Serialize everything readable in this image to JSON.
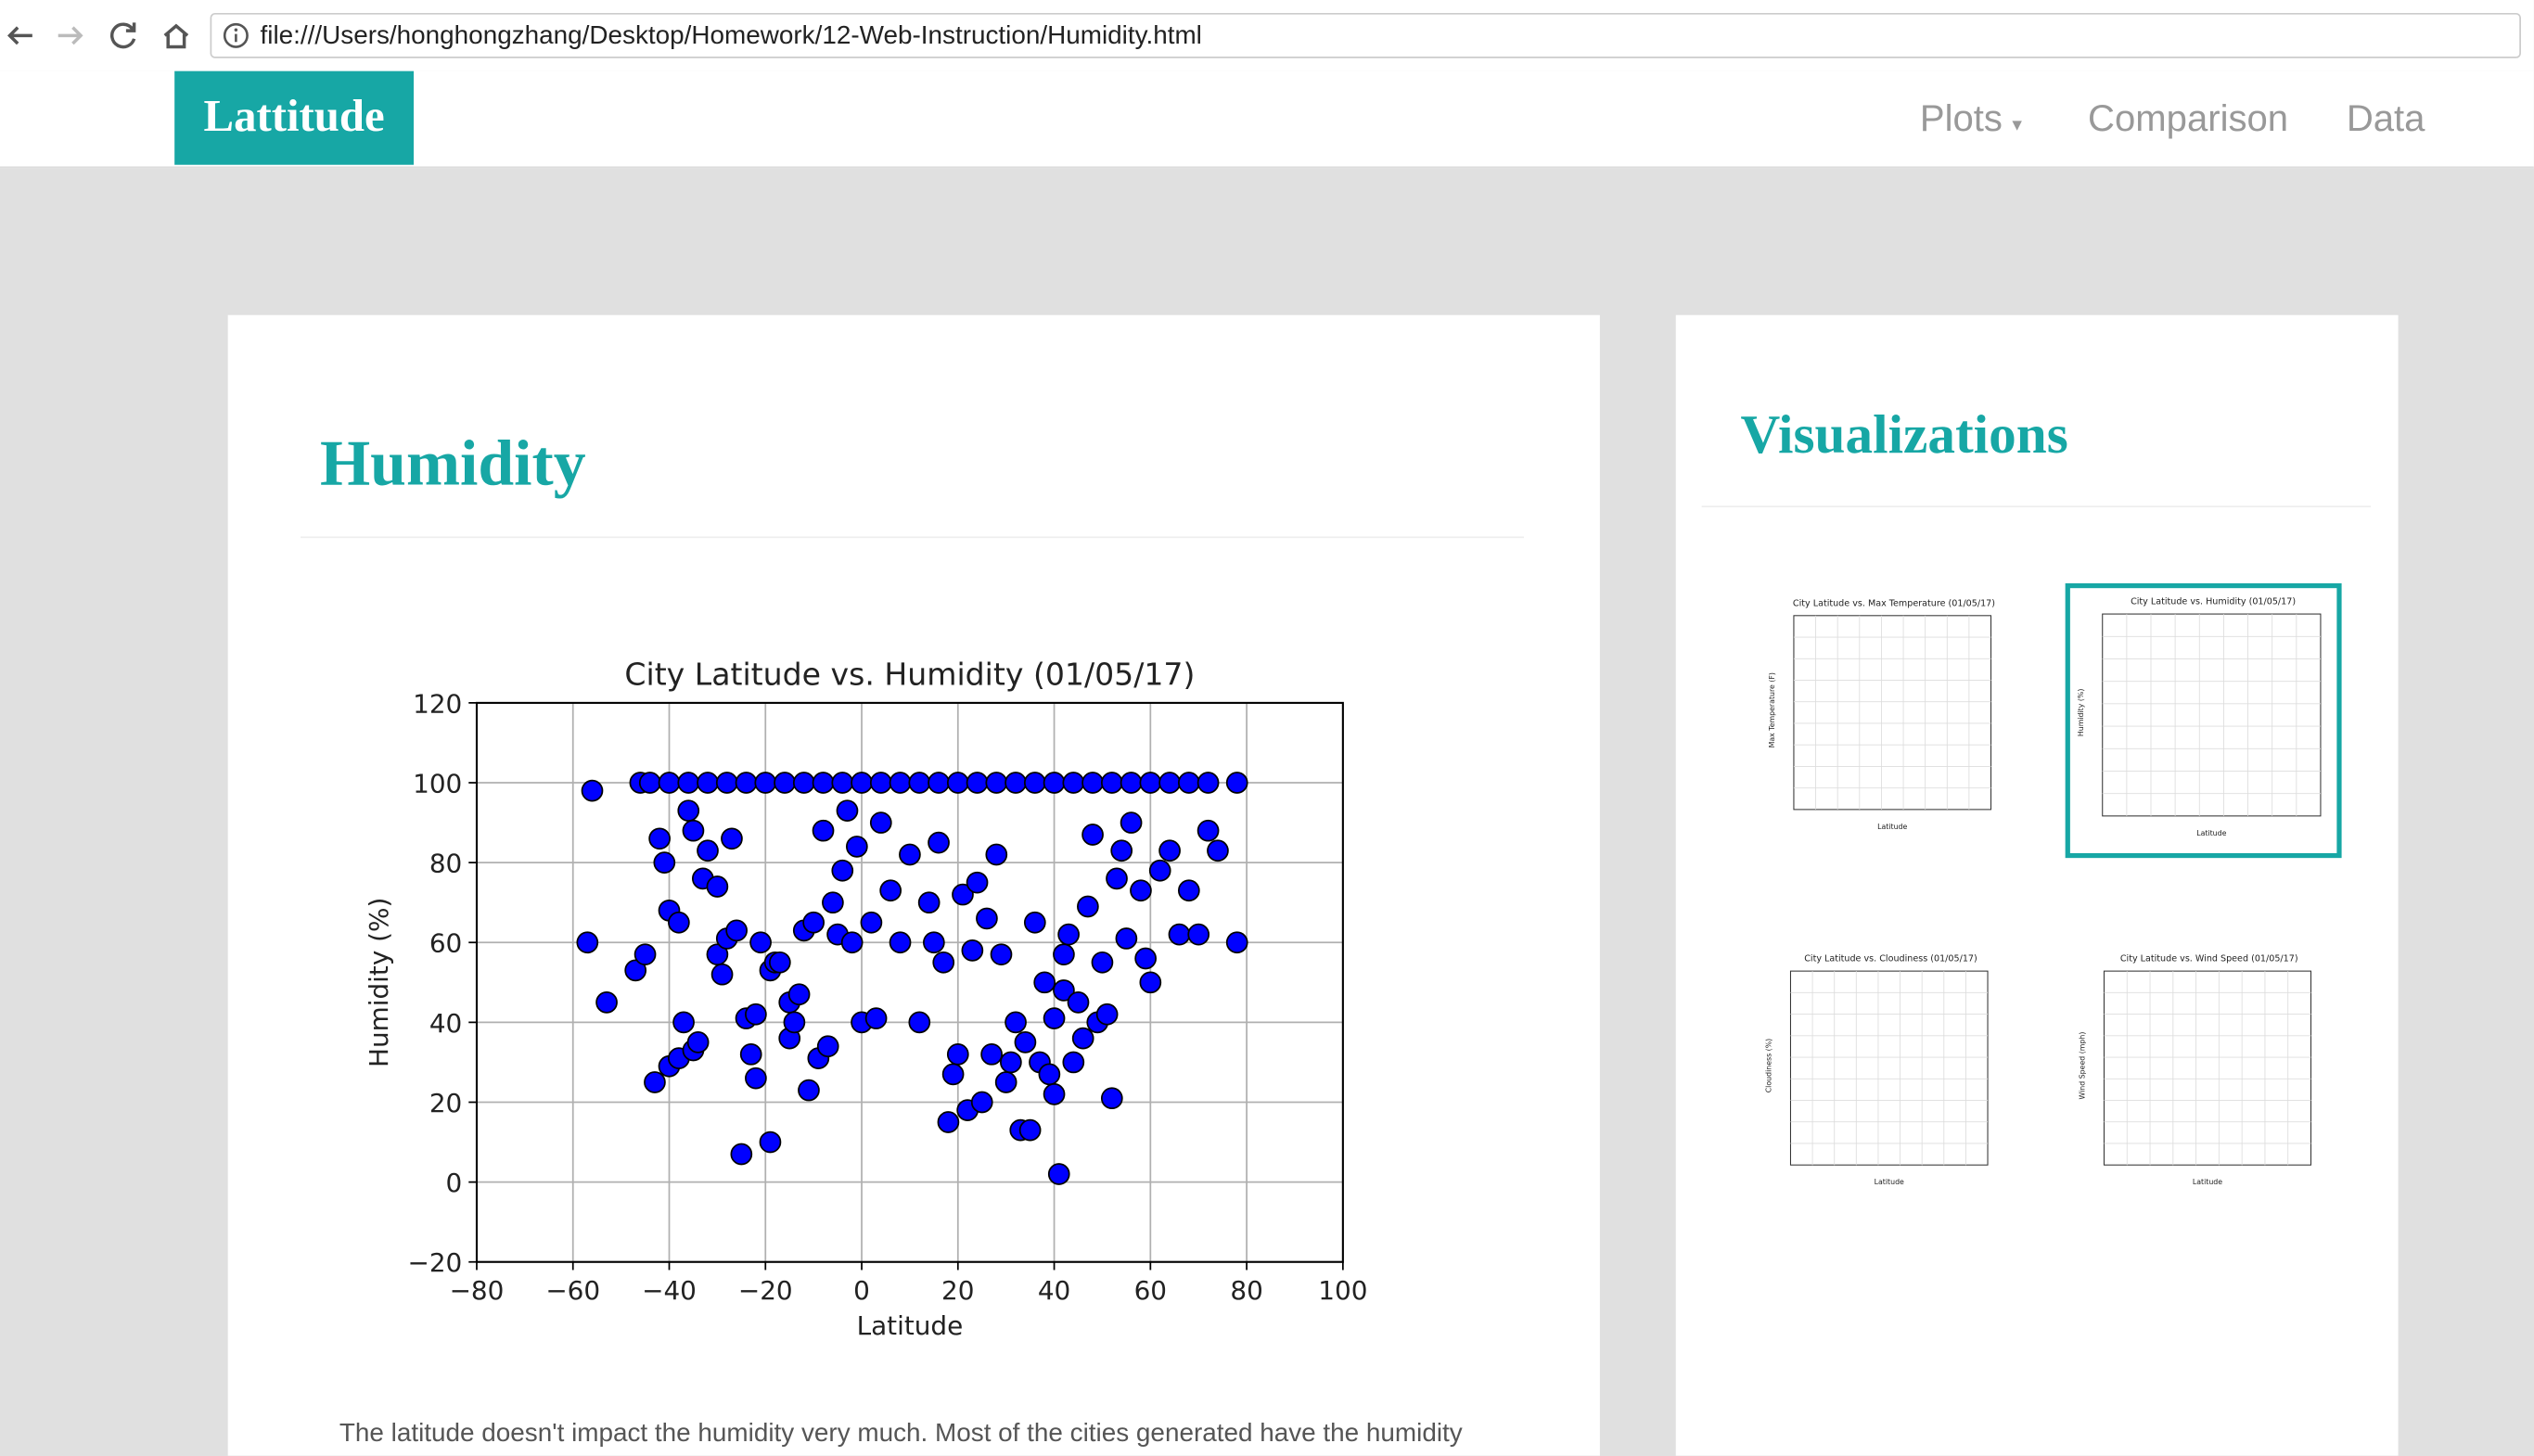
{
  "browser": {
    "url": "file:///Users/honghongzhang/Desktop/Homework/12-Web-Instruction/Humidity.html"
  },
  "navbar": {
    "brand": "Lattitude",
    "items": [
      "Plots",
      "Comparison",
      "Data"
    ]
  },
  "main": {
    "title": "Humidity",
    "description": "The latitude doesn't impact the humidity very much. Most of the cities generated have the humidity"
  },
  "sidebar": {
    "title": "Visualizations",
    "thumbnails": [
      {
        "title": "City Latitude vs. Max Temperature (01/05/17)",
        "ylabel": "Max Temperature (F)",
        "xlabel": "Latitude"
      },
      {
        "title": "City Latitude vs. Humidity (01/05/17)",
        "ylabel": "Humidity (%)",
        "xlabel": "Latitude"
      },
      {
        "title": "City Latitude vs. Cloudiness (01/05/17)",
        "ylabel": "Cloudiness (%)",
        "xlabel": "Latitude"
      },
      {
        "title": "City Latitude vs. Wind Speed (01/05/17)",
        "ylabel": "Wind Speed (mph)",
        "xlabel": "Latitude"
      }
    ]
  },
  "chart_data": {
    "type": "scatter",
    "title": "City Latitude vs. Humidity (01/05/17)",
    "x_label": "Latitude",
    "y_label": "Humidity (%)",
    "xlim": [
      -80,
      100
    ],
    "ylim": [
      -20,
      120
    ],
    "xticks": [
      {
        "value": -80,
        "label": "−80"
      },
      {
        "value": -60,
        "label": "−60"
      },
      {
        "value": -40,
        "label": "−40"
      },
      {
        "value": -20,
        "label": "−20"
      },
      0,
      20,
      40,
      60,
      80,
      100
    ],
    "yticks": [
      {
        "value": -20,
        "label": "−20"
      },
      0,
      20,
      40,
      60,
      80,
      100,
      120
    ],
    "grid": true,
    "x": [
      -46,
      -44,
      -40,
      -36,
      -32,
      -28,
      -24,
      -20,
      -16,
      -12,
      -8,
      -4,
      0,
      4,
      8,
      12,
      16,
      20,
      24,
      28,
      32,
      36,
      40,
      44,
      48,
      52,
      56,
      60,
      64,
      68,
      72,
      78,
      -56,
      -57,
      -53,
      -47,
      -45,
      -43,
      -40,
      -38,
      -37,
      -35,
      -34,
      -42,
      -41,
      -40,
      -38,
      -36,
      -35,
      -33,
      -32,
      -30,
      -29,
      -30,
      -28,
      -27,
      -26,
      -25,
      -24,
      -23,
      -22,
      -22,
      -21,
      -19,
      -19,
      -18,
      -17,
      -15,
      -15,
      -14,
      -13,
      -12,
      -11,
      -10,
      -9,
      -8,
      -7,
      -6,
      -5,
      -4,
      -3,
      -2,
      -1,
      0,
      2,
      3,
      4,
      6,
      8,
      10,
      12,
      14,
      15,
      16,
      17,
      18,
      19,
      20,
      21,
      22,
      23,
      24,
      25,
      26,
      27,
      28,
      29,
      30,
      31,
      32,
      33,
      34,
      35,
      36,
      37,
      38,
      39,
      40,
      40,
      41,
      42,
      42,
      43,
      44,
      45,
      46,
      47,
      48,
      49,
      50,
      51,
      52,
      53,
      54,
      55,
      56,
      58,
      59,
      60,
      62,
      64,
      66,
      68,
      70,
      72,
      74,
      78
    ],
    "series": [
      {
        "name": "Humidity",
        "color": "#0000ff",
        "values": [
          100,
          100,
          100,
          100,
          100,
          100,
          100,
          100,
          100,
          100,
          100,
          100,
          100,
          100,
          100,
          100,
          100,
          100,
          100,
          100,
          100,
          100,
          100,
          100,
          100,
          100,
          100,
          100,
          100,
          100,
          100,
          100,
          98,
          60,
          45,
          53,
          57,
          25,
          29,
          31,
          40,
          33,
          35,
          86,
          80,
          68,
          65,
          93,
          88,
          76,
          83,
          57,
          52,
          74,
          61,
          86,
          63,
          7,
          41,
          32,
          42,
          26,
          60,
          10,
          53,
          55,
          55,
          36,
          45,
          40,
          47,
          63,
          23,
          65,
          31,
          88,
          34,
          70,
          62,
          78,
          93,
          60,
          84,
          40,
          65,
          41,
          90,
          73,
          60,
          82,
          40,
          70,
          60,
          85,
          55,
          15,
          27,
          32,
          72,
          18,
          58,
          75,
          20,
          66,
          32,
          82,
          57,
          25,
          30,
          40,
          13,
          35,
          13,
          65,
          30,
          50,
          27,
          41,
          22,
          2,
          48,
          57,
          62,
          30,
          45,
          36,
          69,
          87,
          40,
          55,
          42,
          21,
          76,
          83,
          61,
          90,
          73,
          56,
          50,
          78,
          83,
          62,
          73,
          62,
          88,
          83,
          60
        ]
      }
    ]
  }
}
